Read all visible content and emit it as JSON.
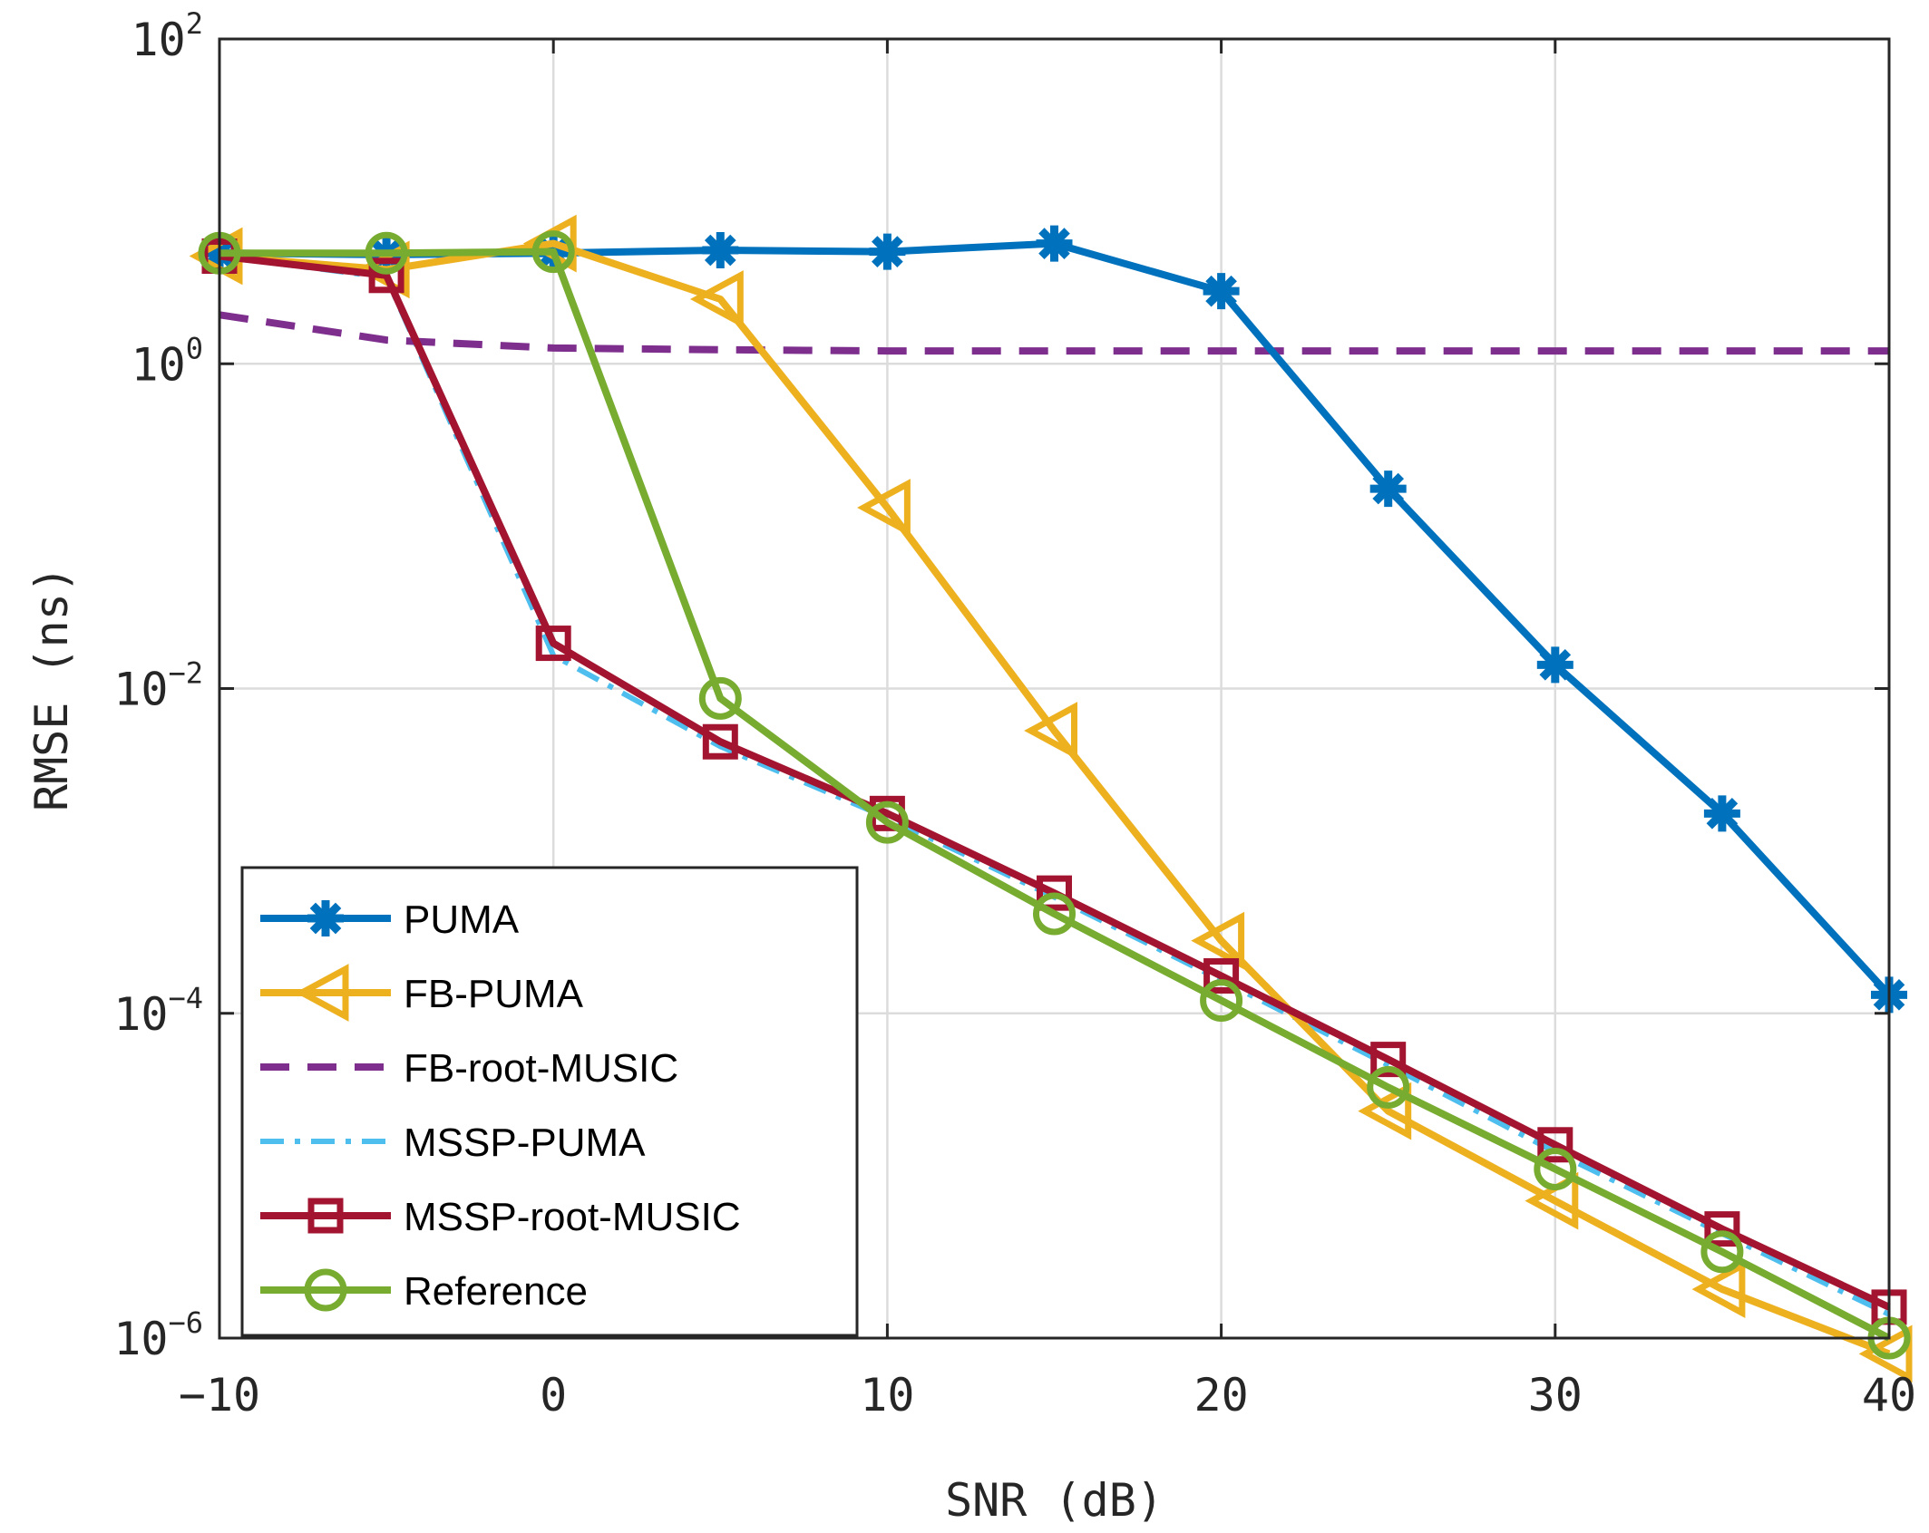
{
  "chart_data": {
    "type": "line",
    "title": "",
    "xlabel": "SNR (dB)",
    "ylabel": "RMSE (ns)",
    "xlim": [
      -10,
      40
    ],
    "ylim": [
      1e-06,
      100
    ],
    "yscale": "log",
    "grid": true,
    "legend_position": "bottom-left",
    "x_ticks": [
      {
        "value": -10,
        "label": "−10"
      },
      {
        "value": 0,
        "label": "0"
      },
      {
        "value": 10,
        "label": "10"
      },
      {
        "value": 20,
        "label": "20"
      },
      {
        "value": 30,
        "label": "30"
      },
      {
        "value": 40,
        "label": "40"
      }
    ],
    "y_ticks": [
      {
        "value": 100,
        "base": "10",
        "exp": "2"
      },
      {
        "value": 1,
        "base": "10",
        "exp": "0"
      },
      {
        "value": 0.01,
        "base": "10",
        "exp": "−2"
      },
      {
        "value": 0.0001,
        "base": "10",
        "exp": "−4"
      },
      {
        "value": 1e-06,
        "base": "10",
        "exp": "−6"
      }
    ],
    "x": [
      -10,
      -5,
      0,
      5,
      10,
      15,
      20,
      25,
      30,
      35,
      40
    ],
    "series": [
      {
        "name": "PUMA",
        "color": "#0072BD",
        "marker": "asterisk",
        "dash": "solid",
        "values": [
          4.8,
          4.7,
          4.8,
          5.0,
          4.9,
          5.5,
          2.8,
          0.17,
          0.014,
          0.0017,
          0.00013
        ]
      },
      {
        "name": "FB-PUMA",
        "color": "#EDB120",
        "marker": "triangle-left",
        "dash": "solid",
        "values": [
          4.6,
          3.8,
          5.5,
          2.5,
          0.13,
          0.0055,
          0.00028,
          2.5e-05,
          7e-06,
          2e-06,
          8e-07
        ]
      },
      {
        "name": "FB-root-MUSIC",
        "color": "#7E2F8E",
        "marker": "none",
        "dash": "dashed",
        "values": [
          2.0,
          1.4,
          1.25,
          1.22,
          1.2,
          1.2,
          1.2,
          1.2,
          1.2,
          1.2,
          1.2
        ]
      },
      {
        "name": "MSSP-PUMA",
        "color": "#4DBEEE",
        "marker": "none",
        "dash": "dashdot",
        "values": [
          4.6,
          3.4,
          0.016,
          0.0044,
          0.0016,
          0.00052,
          0.00016,
          4.8e-05,
          1.4e-05,
          4.4e-06,
          1.4e-06
        ]
      },
      {
        "name": "MSSP-root-MUSIC",
        "color": "#A2142F",
        "marker": "square",
        "dash": "solid",
        "values": [
          4.6,
          3.5,
          0.019,
          0.0047,
          0.0017,
          0.00055,
          0.00017,
          5.2e-05,
          1.55e-05,
          4.7e-06,
          1.55e-06
        ]
      },
      {
        "name": "Reference",
        "color": "#77AC30",
        "marker": "circle",
        "dash": "solid",
        "values": [
          4.8,
          4.8,
          4.9,
          0.0087,
          0.0015,
          0.00041,
          0.00012,
          3.5e-05,
          1.1e-05,
          3.4e-06,
          1e-06
        ]
      }
    ]
  }
}
